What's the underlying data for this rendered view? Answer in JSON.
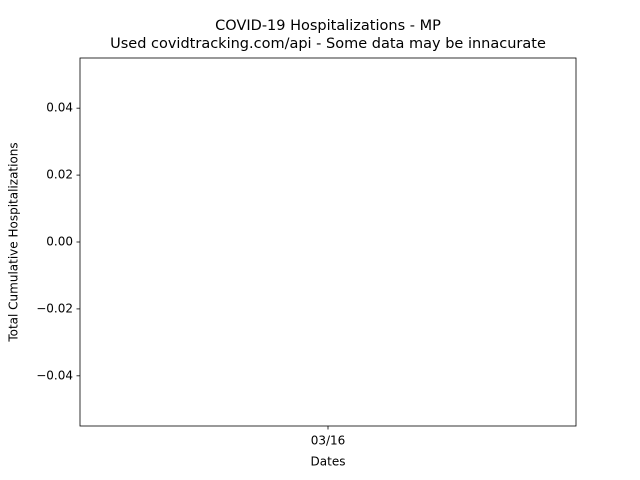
{
  "chart_data": {
    "type": "line",
    "title": "COVID-19 Hospitalizations - MP",
    "subtitle": "Used covidtracking.com/api - Some data may be innacurate",
    "x_label": "Dates",
    "y_label": "Total Cumulative Hospitalizations",
    "categories": [
      "03/16"
    ],
    "values": [
      null
    ],
    "color": "#1f77b4",
    "ylim": [
      -0.055,
      0.055
    ],
    "yticks": [
      {
        "value": -0.04,
        "label": "−0.04"
      },
      {
        "value": -0.02,
        "label": "−0.02"
      },
      {
        "value": 0,
        "label": "0.00"
      },
      0.02,
      0.04
    ],
    "grid": false
  }
}
